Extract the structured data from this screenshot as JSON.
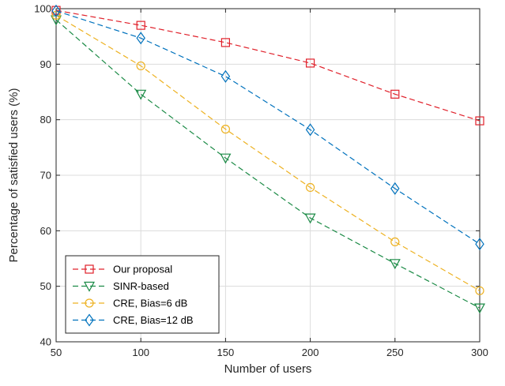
{
  "chart_data": {
    "type": "line",
    "title": "",
    "xlabel": "Number of users",
    "ylabel": "Percentage of satisfied users (%)",
    "xlim": [
      50,
      300
    ],
    "ylim": [
      40,
      100
    ],
    "xticks": [
      50,
      100,
      150,
      200,
      250,
      300
    ],
    "yticks": [
      40,
      50,
      60,
      70,
      80,
      90,
      100
    ],
    "grid": true,
    "legend_position": "bottom-left",
    "x": [
      50,
      100,
      150,
      200,
      250,
      300
    ],
    "series": [
      {
        "name": "Our proposal",
        "color": "#e0202a",
        "marker": "square",
        "values": [
          99.7,
          97.0,
          93.9,
          90.2,
          84.6,
          79.8
        ]
      },
      {
        "name": "SINR-based",
        "color": "#1a8a45",
        "marker": "triangle-down",
        "values": [
          98.0,
          84.6,
          73.1,
          62.3,
          54.1,
          46.1
        ]
      },
      {
        "name": "CRE, Bias=6 dB",
        "color": "#edb120",
        "marker": "circle",
        "values": [
          98.8,
          89.7,
          78.3,
          67.8,
          58.0,
          49.2
        ]
      },
      {
        "name": "CRE, Bias=12 dB",
        "color": "#0072bd",
        "marker": "diamond",
        "values": [
          99.6,
          94.7,
          87.8,
          78.2,
          67.6,
          57.6
        ]
      }
    ]
  }
}
